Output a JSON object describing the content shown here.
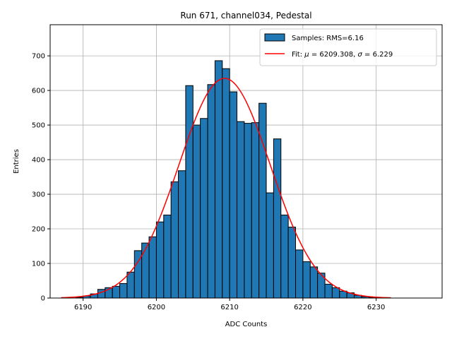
{
  "chart_data": {
    "type": "bar",
    "title": "Run 671, channel034, Pedestal",
    "xlabel": "ADC Counts",
    "ylabel": "Entries",
    "xlim": [
      6185.5,
      6239
    ],
    "ylim": [
      0,
      790
    ],
    "xticks": [
      6190,
      6200,
      6210,
      6220,
      6230
    ],
    "yticks": [
      0,
      100,
      200,
      300,
      400,
      500,
      600,
      700
    ],
    "grid": true,
    "legend_position": "top-right",
    "histogram": {
      "name": "Samples: RMS=6.16",
      "color": "#1f77b4",
      "bin_width": 1,
      "bin_starts": [
        6189,
        6190,
        6191,
        6192,
        6193,
        6194,
        6195,
        6196,
        6197,
        6198,
        6199,
        6200,
        6201,
        6202,
        6203,
        6204,
        6205,
        6206,
        6207,
        6208,
        6209,
        6210,
        6211,
        6212,
        6213,
        6214,
        6215,
        6216,
        6217,
        6218,
        6219,
        6220,
        6221,
        6222,
        6223,
        6224,
        6225,
        6226,
        6227,
        6228,
        6229
      ],
      "counts": [
        2,
        6,
        12,
        25,
        30,
        34,
        42,
        75,
        137,
        159,
        177,
        220,
        240,
        336,
        368,
        614,
        500,
        519,
        617,
        686,
        663,
        596,
        510,
        505,
        507,
        563,
        304,
        460,
        240,
        205,
        139,
        105,
        90,
        72,
        40,
        30,
        20,
        15,
        8,
        4,
        2
      ]
    },
    "fit": {
      "name_prefix": "Fit: ",
      "mu_symbol": "μ",
      "mu_value": "6209.308",
      "sigma_symbol": "σ",
      "sigma_value": "6.229",
      "color": "#ff0000",
      "mu": 6209.308,
      "sigma": 6.229,
      "amplitude": 635,
      "x_range": [
        6187,
        6232
      ]
    }
  }
}
